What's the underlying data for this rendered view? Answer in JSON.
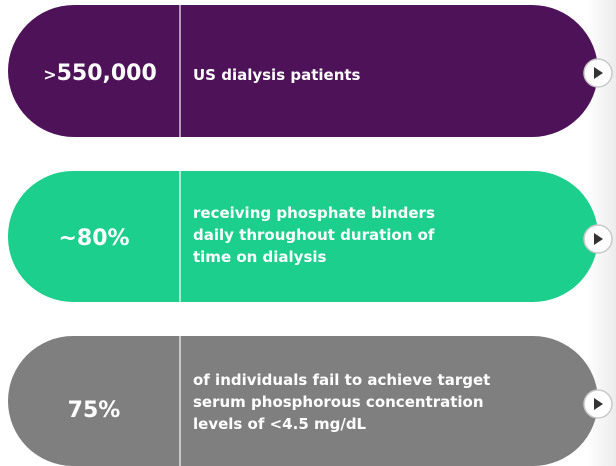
{
  "items": [
    {
      "stat_prefix": ">",
      "stat": "550,000",
      "lines": [
        "US dialysis patients"
      ]
    },
    {
      "stat": "~80%",
      "lines": [
        "receiving phosphate binders",
        "daily throughout duration of",
        "time on dialysis"
      ]
    },
    {
      "stat": "75%",
      "lines": [
        "of individuals fail to achieve target",
        "serum phosphorous concentration",
        "levels of <4.5 mg/dL"
      ]
    }
  ]
}
